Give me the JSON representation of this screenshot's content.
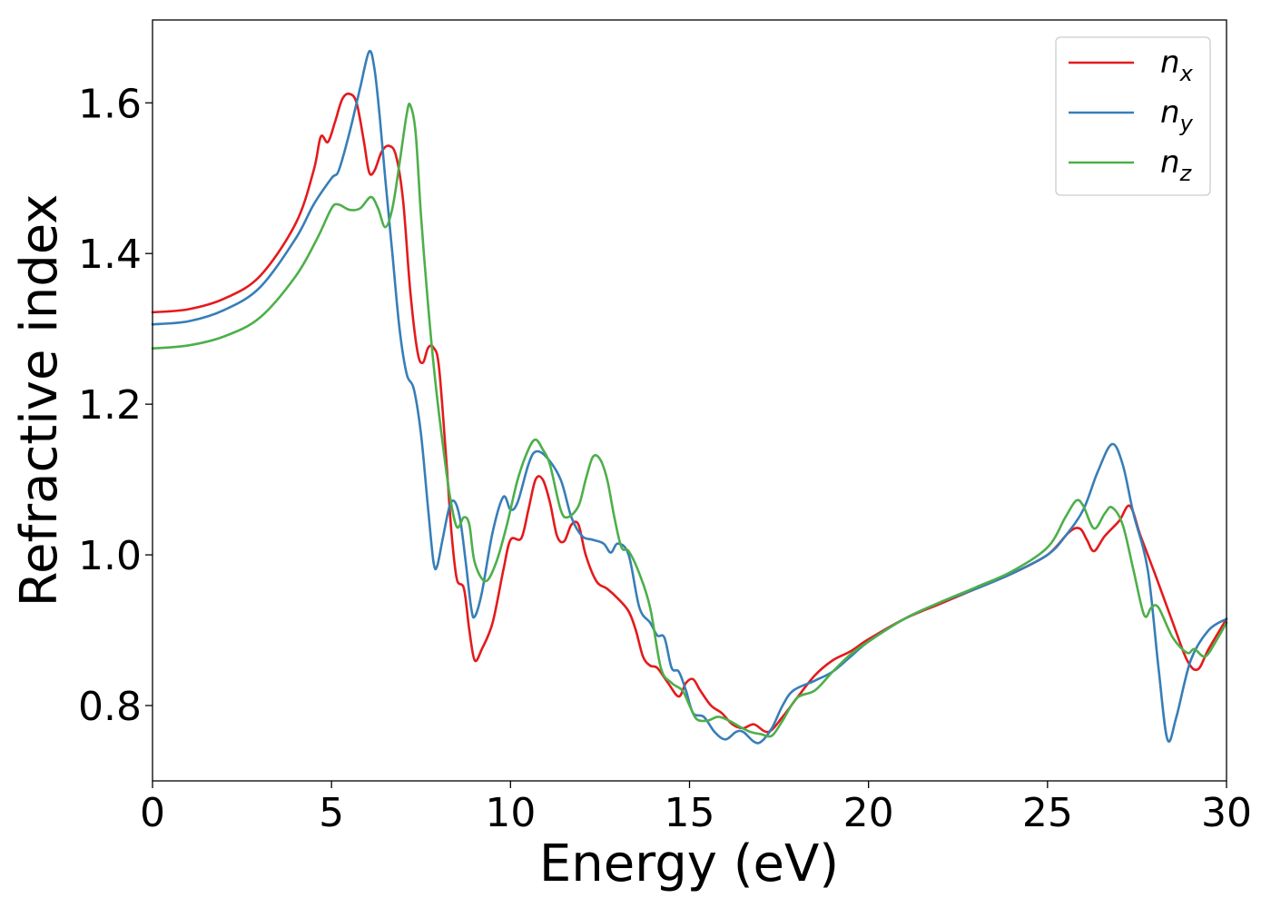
{
  "chart_data": {
    "type": "line",
    "title": "",
    "xlabel": "Energy (eV)",
    "ylabel": "Refractive index",
    "xlim": [
      0,
      30
    ],
    "ylim": [
      0.7,
      1.71
    ],
    "xticks": [
      0,
      5,
      10,
      15,
      20,
      25,
      30
    ],
    "yticks": [
      0.8,
      1.0,
      1.2,
      1.4,
      1.6
    ],
    "xtick_labels": [
      "0",
      "5",
      "10",
      "15",
      "20",
      "25",
      "30"
    ],
    "ytick_labels": [
      "0.8",
      "1.0",
      "1.2",
      "1.4",
      "1.6"
    ],
    "grid": false,
    "legend": "top-right",
    "series": [
      {
        "name": "n_x",
        "label_main": "n",
        "label_sub": "x",
        "color": "#e41a1c",
        "points": [
          [
            0,
            1.322
          ],
          [
            1,
            1.326
          ],
          [
            2,
            1.34
          ],
          [
            3,
            1.37
          ],
          [
            4,
            1.44
          ],
          [
            4.5,
            1.51
          ],
          [
            4.7,
            1.555
          ],
          [
            4.9,
            1.548
          ],
          [
            5.1,
            1.575
          ],
          [
            5.3,
            1.605
          ],
          [
            5.5,
            1.612
          ],
          [
            5.7,
            1.6
          ],
          [
            5.9,
            1.55
          ],
          [
            6.05,
            1.508
          ],
          [
            6.2,
            1.51
          ],
          [
            6.4,
            1.535
          ],
          [
            6.6,
            1.543
          ],
          [
            6.8,
            1.53
          ],
          [
            7.0,
            1.47
          ],
          [
            7.2,
            1.35
          ],
          [
            7.4,
            1.27
          ],
          [
            7.55,
            1.255
          ],
          [
            7.7,
            1.275
          ],
          [
            7.85,
            1.275
          ],
          [
            8.0,
            1.25
          ],
          [
            8.2,
            1.13
          ],
          [
            8.35,
            1.03
          ],
          [
            8.5,
            0.968
          ],
          [
            8.7,
            0.955
          ],
          [
            8.85,
            0.9
          ],
          [
            9.0,
            0.86
          ],
          [
            9.2,
            0.875
          ],
          [
            9.5,
            0.91
          ],
          [
            9.8,
            0.98
          ],
          [
            10.0,
            1.02
          ],
          [
            10.3,
            1.022
          ],
          [
            10.5,
            1.06
          ],
          [
            10.7,
            1.1
          ],
          [
            10.9,
            1.1
          ],
          [
            11.1,
            1.07
          ],
          [
            11.3,
            1.025
          ],
          [
            11.5,
            1.018
          ],
          [
            11.7,
            1.04
          ],
          [
            11.9,
            1.04
          ],
          [
            12.1,
            1.0
          ],
          [
            12.4,
            0.965
          ],
          [
            12.7,
            0.955
          ],
          [
            13.0,
            0.942
          ],
          [
            13.3,
            0.925
          ],
          [
            13.5,
            0.9
          ],
          [
            13.7,
            0.865
          ],
          [
            13.9,
            0.853
          ],
          [
            14.1,
            0.85
          ],
          [
            14.4,
            0.83
          ],
          [
            14.7,
            0.812
          ],
          [
            14.9,
            0.83
          ],
          [
            15.1,
            0.835
          ],
          [
            15.3,
            0.82
          ],
          [
            15.6,
            0.8
          ],
          [
            15.9,
            0.79
          ],
          [
            16.2,
            0.775
          ],
          [
            16.5,
            0.77
          ],
          [
            16.8,
            0.775
          ],
          [
            17.2,
            0.765
          ],
          [
            17.6,
            0.785
          ],
          [
            18.0,
            0.81
          ],
          [
            18.5,
            0.84
          ],
          [
            19,
            0.86
          ],
          [
            19.5,
            0.872
          ],
          [
            20,
            0.888
          ],
          [
            21,
            0.915
          ],
          [
            22,
            0.935
          ],
          [
            23,
            0.955
          ],
          [
            24,
            0.975
          ],
          [
            25,
            1.0
          ],
          [
            25.6,
            1.03
          ],
          [
            25.9,
            1.035
          ],
          [
            26.1,
            1.02
          ],
          [
            26.3,
            1.005
          ],
          [
            26.6,
            1.025
          ],
          [
            27.0,
            1.045
          ],
          [
            27.3,
            1.065
          ],
          [
            27.6,
            1.025
          ],
          [
            28.0,
            0.975
          ],
          [
            28.5,
            0.91
          ],
          [
            28.9,
            0.86
          ],
          [
            29.2,
            0.848
          ],
          [
            29.5,
            0.875
          ],
          [
            30,
            0.915
          ]
        ]
      },
      {
        "name": "n_y",
        "label_main": "n",
        "label_sub": "y",
        "color": "#377eb8",
        "points": [
          [
            0,
            1.306
          ],
          [
            1,
            1.31
          ],
          [
            2,
            1.325
          ],
          [
            3,
            1.355
          ],
          [
            4,
            1.42
          ],
          [
            4.5,
            1.465
          ],
          [
            5.0,
            1.5
          ],
          [
            5.2,
            1.51
          ],
          [
            5.5,
            1.56
          ],
          [
            5.8,
            1.62
          ],
          [
            6.05,
            1.668
          ],
          [
            6.2,
            1.645
          ],
          [
            6.35,
            1.58
          ],
          [
            6.5,
            1.5
          ],
          [
            6.7,
            1.4
          ],
          [
            6.9,
            1.3
          ],
          [
            7.1,
            1.24
          ],
          [
            7.3,
            1.22
          ],
          [
            7.5,
            1.16
          ],
          [
            7.7,
            1.06
          ],
          [
            7.85,
            0.99
          ],
          [
            7.95,
            0.985
          ],
          [
            8.1,
            1.02
          ],
          [
            8.3,
            1.065
          ],
          [
            8.45,
            1.07
          ],
          [
            8.6,
            1.045
          ],
          [
            8.75,
            0.99
          ],
          [
            8.9,
            0.93
          ],
          [
            9.0,
            0.918
          ],
          [
            9.2,
            0.95
          ],
          [
            9.5,
            1.03
          ],
          [
            9.8,
            1.077
          ],
          [
            10.0,
            1.06
          ],
          [
            10.2,
            1.07
          ],
          [
            10.5,
            1.12
          ],
          [
            10.7,
            1.137
          ],
          [
            11.0,
            1.13
          ],
          [
            11.4,
            1.1
          ],
          [
            11.7,
            1.05
          ],
          [
            12.0,
            1.025
          ],
          [
            12.3,
            1.02
          ],
          [
            12.6,
            1.015
          ],
          [
            12.8,
            1.003
          ],
          [
            13.0,
            1.015
          ],
          [
            13.3,
            1.0
          ],
          [
            13.6,
            0.93
          ],
          [
            13.9,
            0.91
          ],
          [
            14.1,
            0.893
          ],
          [
            14.3,
            0.89
          ],
          [
            14.5,
            0.85
          ],
          [
            14.7,
            0.845
          ],
          [
            14.9,
            0.82
          ],
          [
            15.1,
            0.79
          ],
          [
            15.4,
            0.785
          ],
          [
            15.7,
            0.765
          ],
          [
            16.0,
            0.755
          ],
          [
            16.3,
            0.765
          ],
          [
            16.5,
            0.765
          ],
          [
            16.8,
            0.752
          ],
          [
            17.0,
            0.752
          ],
          [
            17.3,
            0.77
          ],
          [
            17.6,
            0.8
          ],
          [
            17.9,
            0.82
          ],
          [
            18.5,
            0.833
          ],
          [
            19,
            0.845
          ],
          [
            19.5,
            0.865
          ],
          [
            20,
            0.885
          ],
          [
            21,
            0.915
          ],
          [
            22,
            0.937
          ],
          [
            23,
            0.955
          ],
          [
            24,
            0.975
          ],
          [
            25,
            1.0
          ],
          [
            25.5,
            1.025
          ],
          [
            26.0,
            1.06
          ],
          [
            26.4,
            1.11
          ],
          [
            26.8,
            1.147
          ],
          [
            27.1,
            1.12
          ],
          [
            27.4,
            1.055
          ],
          [
            27.8,
            0.98
          ],
          [
            28.1,
            0.85
          ],
          [
            28.35,
            0.755
          ],
          [
            28.6,
            0.785
          ],
          [
            29.0,
            0.86
          ],
          [
            29.5,
            0.9
          ],
          [
            30,
            0.915
          ]
        ]
      },
      {
        "name": "n_z",
        "label_main": "n",
        "label_sub": "z",
        "color": "#4daf4a",
        "points": [
          [
            0,
            1.274
          ],
          [
            1,
            1.278
          ],
          [
            2,
            1.29
          ],
          [
            3,
            1.315
          ],
          [
            4,
            1.37
          ],
          [
            4.6,
            1.42
          ],
          [
            5.0,
            1.46
          ],
          [
            5.2,
            1.465
          ],
          [
            5.5,
            1.458
          ],
          [
            5.8,
            1.46
          ],
          [
            6.1,
            1.475
          ],
          [
            6.3,
            1.46
          ],
          [
            6.5,
            1.435
          ],
          [
            6.7,
            1.46
          ],
          [
            6.9,
            1.52
          ],
          [
            7.1,
            1.585
          ],
          [
            7.2,
            1.597
          ],
          [
            7.35,
            1.56
          ],
          [
            7.5,
            1.45
          ],
          [
            7.7,
            1.33
          ],
          [
            7.9,
            1.23
          ],
          [
            8.1,
            1.15
          ],
          [
            8.3,
            1.08
          ],
          [
            8.5,
            1.037
          ],
          [
            8.7,
            1.05
          ],
          [
            8.85,
            1.04
          ],
          [
            9.0,
            0.99
          ],
          [
            9.3,
            0.965
          ],
          [
            9.6,
            0.99
          ],
          [
            9.9,
            1.04
          ],
          [
            10.2,
            1.1
          ],
          [
            10.5,
            1.14
          ],
          [
            10.7,
            1.153
          ],
          [
            10.9,
            1.14
          ],
          [
            11.1,
            1.12
          ],
          [
            11.4,
            1.06
          ],
          [
            11.6,
            1.05
          ],
          [
            11.9,
            1.065
          ],
          [
            12.1,
            1.1
          ],
          [
            12.3,
            1.13
          ],
          [
            12.5,
            1.127
          ],
          [
            12.7,
            1.1
          ],
          [
            12.9,
            1.05
          ],
          [
            13.1,
            1.01
          ],
          [
            13.3,
            1.005
          ],
          [
            13.6,
            0.975
          ],
          [
            13.9,
            0.93
          ],
          [
            14.2,
            0.85
          ],
          [
            14.5,
            0.83
          ],
          [
            14.8,
            0.82
          ],
          [
            15.0,
            0.8
          ],
          [
            15.2,
            0.782
          ],
          [
            15.5,
            0.78
          ],
          [
            15.8,
            0.785
          ],
          [
            16.1,
            0.78
          ],
          [
            16.4,
            0.772
          ],
          [
            16.7,
            0.765
          ],
          [
            17.0,
            0.762
          ],
          [
            17.3,
            0.76
          ],
          [
            17.6,
            0.78
          ],
          [
            18.0,
            0.81
          ],
          [
            18.5,
            0.82
          ],
          [
            19,
            0.845
          ],
          [
            19.5,
            0.868
          ],
          [
            20,
            0.885
          ],
          [
            21,
            0.915
          ],
          [
            22,
            0.937
          ],
          [
            23,
            0.957
          ],
          [
            24,
            0.978
          ],
          [
            25,
            1.01
          ],
          [
            25.5,
            1.05
          ],
          [
            25.8,
            1.072
          ],
          [
            26.0,
            1.065
          ],
          [
            26.3,
            1.035
          ],
          [
            26.6,
            1.055
          ],
          [
            26.8,
            1.063
          ],
          [
            27.1,
            1.04
          ],
          [
            27.4,
            0.98
          ],
          [
            27.7,
            0.92
          ],
          [
            27.9,
            0.93
          ],
          [
            28.1,
            0.93
          ],
          [
            28.5,
            0.89
          ],
          [
            28.9,
            0.87
          ],
          [
            29.1,
            0.875
          ],
          [
            29.4,
            0.865
          ],
          [
            29.7,
            0.885
          ],
          [
            30,
            0.91
          ]
        ]
      }
    ]
  }
}
